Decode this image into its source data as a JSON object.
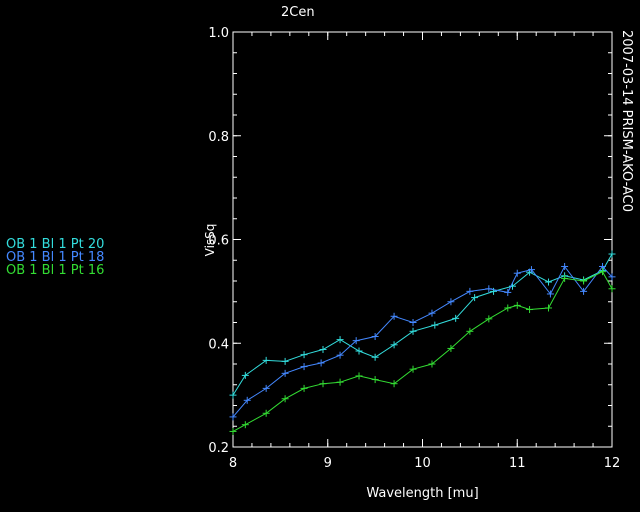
{
  "chart_data": {
    "type": "line",
    "title": "2Cen",
    "side_label": "2007-03-14 PRISM-AKO-AC0",
    "xlabel": "Wavelength [mu]",
    "ylabel": "VisSq",
    "xlim": [
      8,
      12
    ],
    "ylim": [
      0.2,
      1.0
    ],
    "x_ticks": [
      8,
      9,
      10,
      11,
      12
    ],
    "x_tick_labels": [
      "8",
      "9",
      "10",
      "11",
      "12"
    ],
    "y_ticks": [
      0.2,
      0.4,
      0.6,
      0.8,
      1.0
    ],
    "y_tick_labels": [
      "0.2",
      "0.4",
      "0.6",
      "0.8",
      "1.0"
    ],
    "grid": false,
    "legend_position": "left",
    "background": "#000000",
    "axis_color": "#ffffff",
    "series": [
      {
        "name": "OB 1 Bl 1 Pt 20",
        "color": "#33dddd",
        "x": [
          8.0,
          8.13,
          8.35,
          8.55,
          8.75,
          8.95,
          9.13,
          9.33,
          9.5,
          9.7,
          9.9,
          10.13,
          10.35,
          10.55,
          10.75,
          10.95,
          11.13,
          11.33,
          11.5,
          11.7,
          11.9,
          12.0
        ],
        "y": [
          0.3,
          0.338,
          0.367,
          0.365,
          0.378,
          0.388,
          0.407,
          0.385,
          0.373,
          0.397,
          0.423,
          0.435,
          0.448,
          0.488,
          0.5,
          0.51,
          0.537,
          0.518,
          0.53,
          0.522,
          0.54,
          0.572
        ]
      },
      {
        "name": "OB 1 Bl 1 Pt 18",
        "color": "#4488ff",
        "x": [
          8.0,
          8.15,
          8.35,
          8.55,
          8.75,
          8.93,
          9.13,
          9.3,
          9.5,
          9.7,
          9.9,
          10.1,
          10.3,
          10.5,
          10.7,
          10.9,
          11.0,
          11.15,
          11.35,
          11.5,
          11.7,
          11.9,
          12.0
        ],
        "y": [
          0.258,
          0.29,
          0.313,
          0.342,
          0.355,
          0.362,
          0.377,
          0.405,
          0.413,
          0.452,
          0.44,
          0.458,
          0.48,
          0.5,
          0.505,
          0.498,
          0.535,
          0.542,
          0.495,
          0.548,
          0.5,
          0.548,
          0.528
        ]
      },
      {
        "name": "OB 1 Bl 1 Pt 16",
        "color": "#33dd33",
        "x": [
          8.0,
          8.13,
          8.35,
          8.55,
          8.75,
          8.95,
          9.13,
          9.33,
          9.5,
          9.7,
          9.9,
          10.1,
          10.3,
          10.5,
          10.7,
          10.9,
          11.0,
          11.13,
          11.33,
          11.5,
          11.7,
          11.9,
          12.0
        ],
        "y": [
          0.23,
          0.243,
          0.265,
          0.293,
          0.313,
          0.322,
          0.325,
          0.337,
          0.33,
          0.322,
          0.35,
          0.36,
          0.39,
          0.423,
          0.447,
          0.468,
          0.473,
          0.465,
          0.468,
          0.525,
          0.52,
          0.538,
          0.505
        ]
      }
    ]
  }
}
